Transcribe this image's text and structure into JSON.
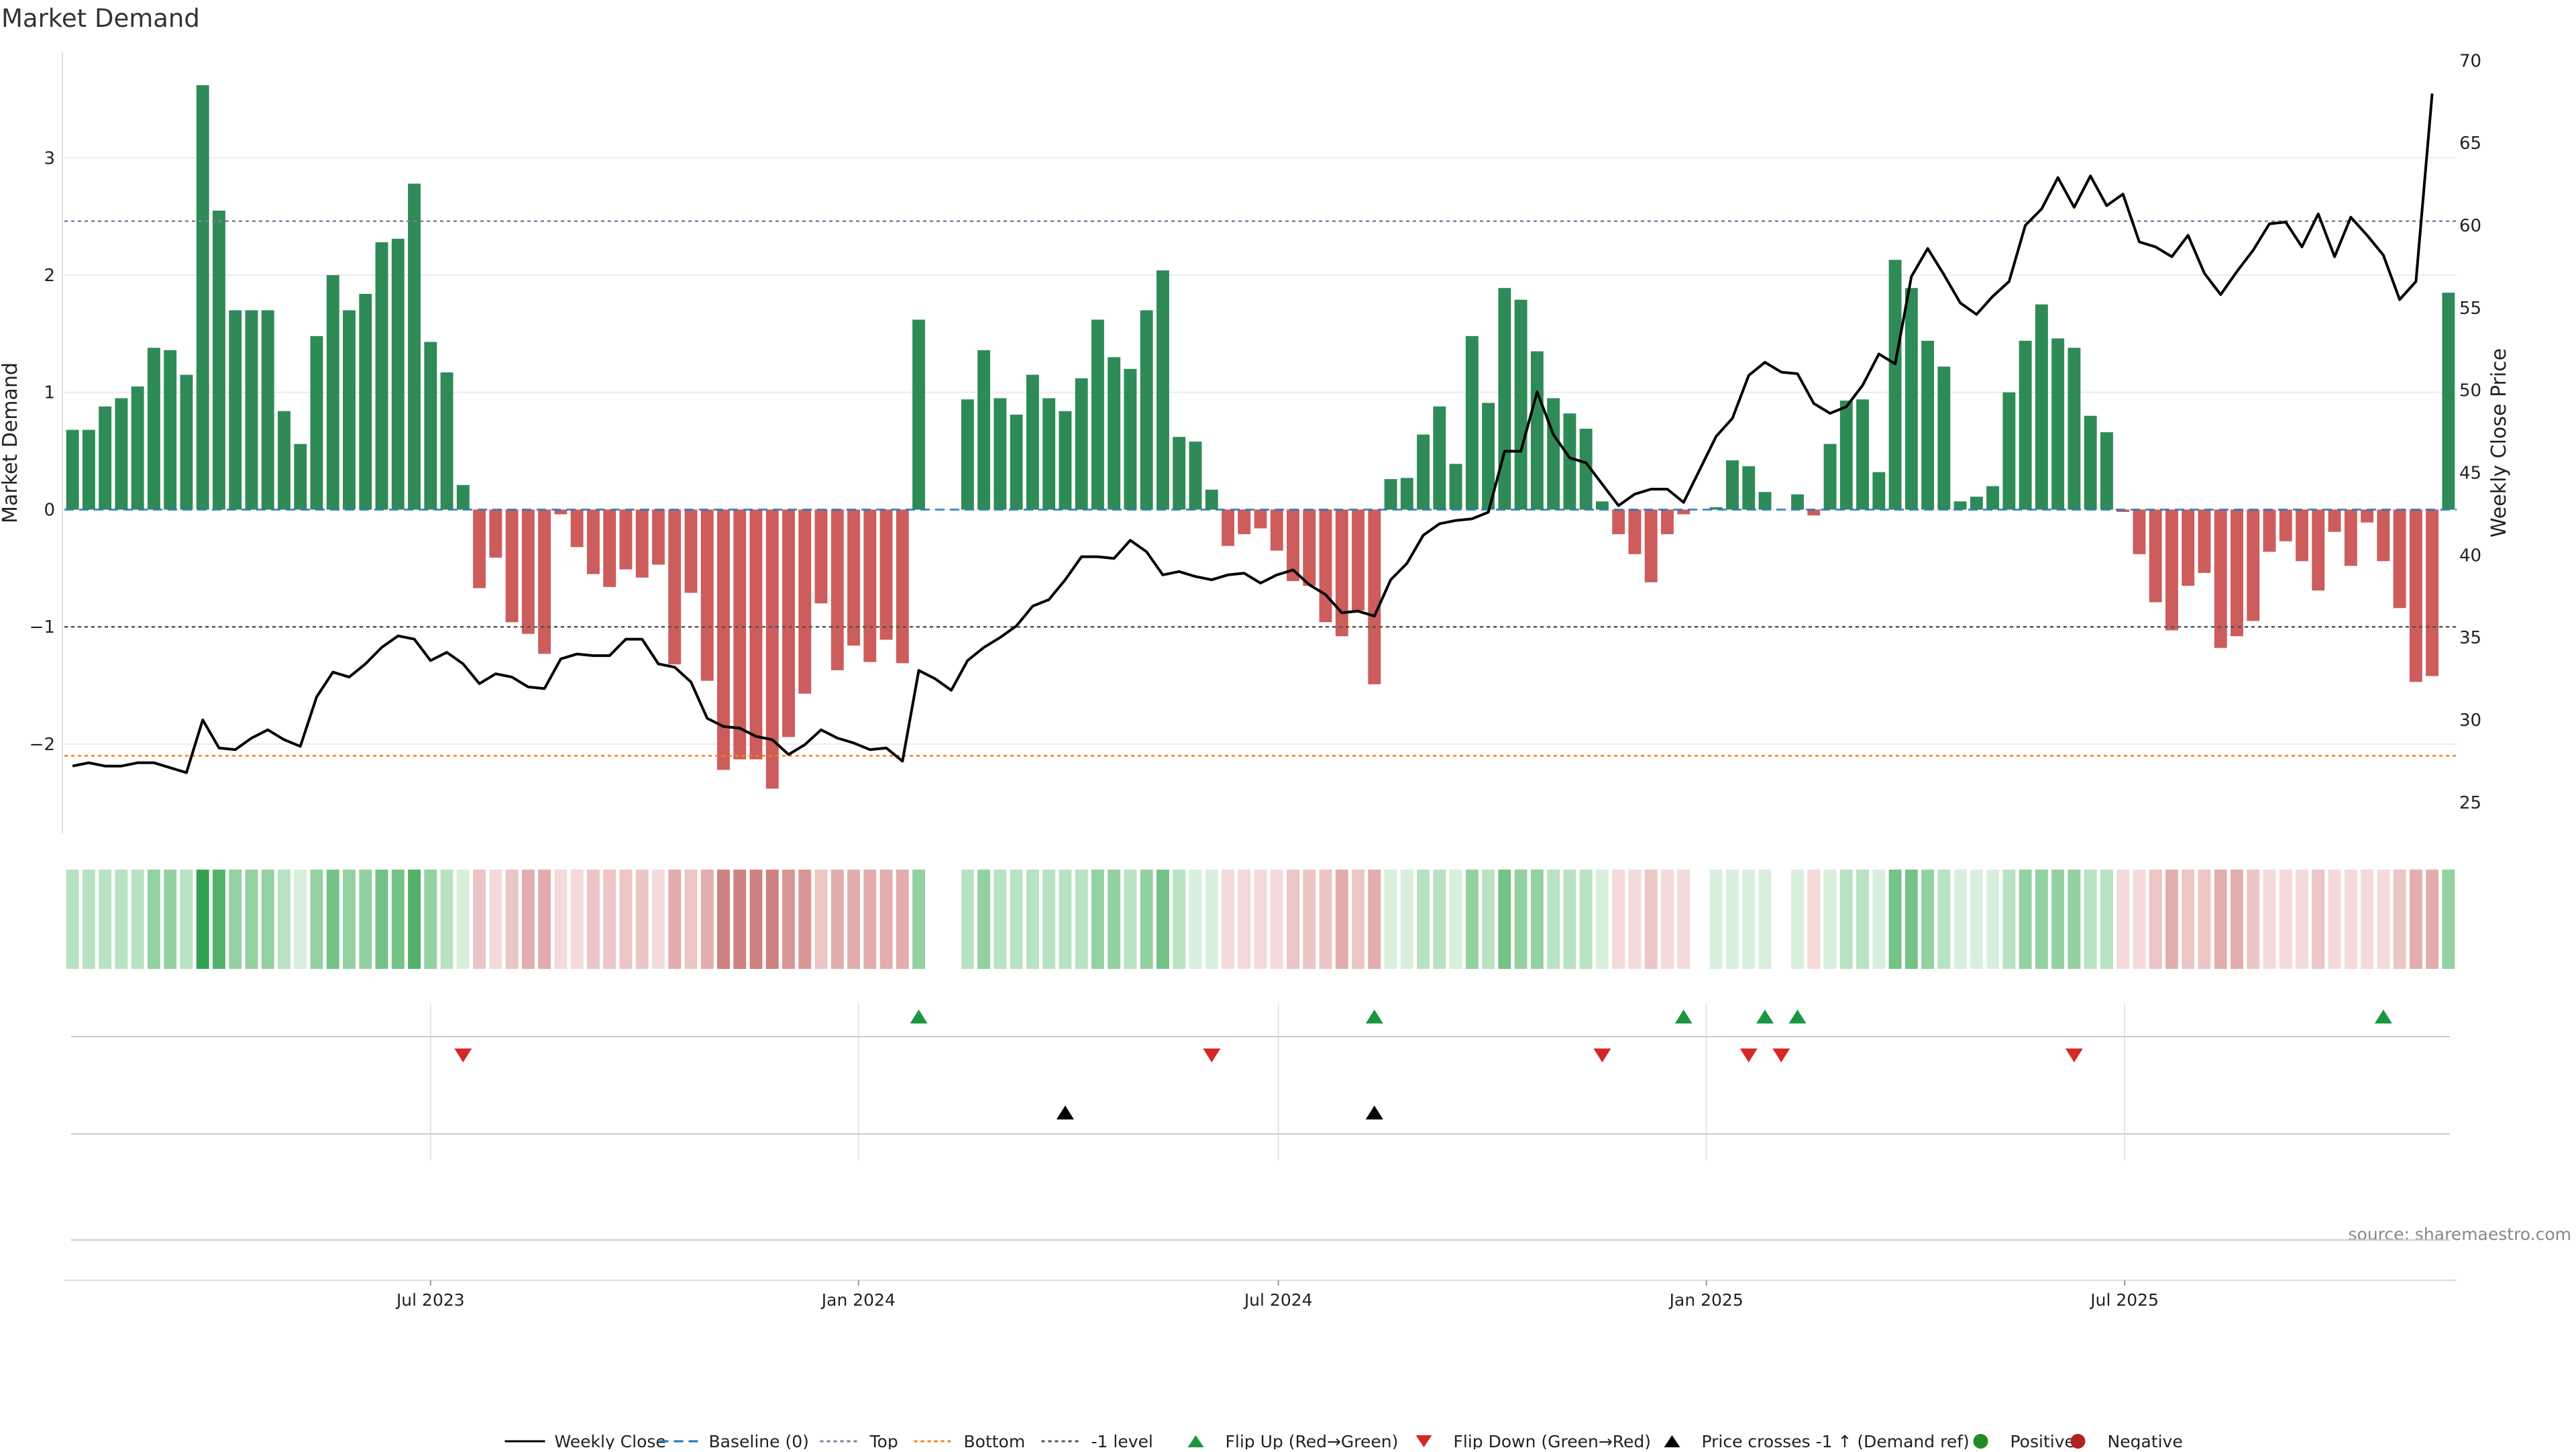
{
  "title": "Market Demand",
  "source": "source: sharemaestro.com",
  "colors": {
    "positive": "#2e8b57",
    "negative": "#cd5c5c",
    "price_line": "#000000",
    "baseline": "#1f77b4",
    "top_line": "#7f7f9f",
    "bottom_line": "#ff7f0e",
    "minus_one_line": "#555555",
    "flip_up": "#1a9641",
    "flip_down": "#d62728",
    "cross_marker": "#000000",
    "positive_dot": "#228b22",
    "negative_dot": "#b22222"
  },
  "chart_data": {
    "type": "bar",
    "title": "Market Demand",
    "ylabel": "Market Demand",
    "y2label": "Weekly Close Price",
    "ylim": [
      -2.75,
      3.9
    ],
    "y2lim": [
      23.2,
      70.5
    ],
    "yticks": [
      "3",
      "2",
      "1",
      "0",
      "−1",
      "−2"
    ],
    "ytick_values": [
      3,
      2,
      1,
      0,
      -1,
      -2
    ],
    "y2ticks": [
      "70",
      "65",
      "60",
      "55",
      "50",
      "45",
      "40",
      "35",
      "30",
      "25"
    ],
    "y2tick_values": [
      70,
      65,
      60,
      55,
      50,
      45,
      40,
      35,
      30,
      25
    ],
    "xticks": [
      "Jul 2023",
      "Jan 2024",
      "Jul 2024",
      "Jan 2025",
      "Jul 2025"
    ],
    "xtick_index": [
      22,
      48.3,
      74.1,
      100.4,
      126.1
    ],
    "reference_lines": {
      "top": 2.46,
      "bottom": -2.1,
      "minus_one": -1.0,
      "baseline": 0
    },
    "demand": [
      0.68,
      0.68,
      0.88,
      0.95,
      1.05,
      1.38,
      1.36,
      1.15,
      3.62,
      2.55,
      1.7,
      1.7,
      1.7,
      0.84,
      0.56,
      1.48,
      2.0,
      1.7,
      1.84,
      2.28,
      2.31,
      2.78,
      1.43,
      1.17,
      0.21,
      -0.67,
      -0.41,
      -0.96,
      -1.06,
      -1.23,
      -0.04,
      -0.32,
      -0.55,
      -0.66,
      -0.51,
      -0.58,
      -0.47,
      -1.32,
      -0.71,
      -1.46,
      -2.22,
      -2.13,
      -2.13,
      -2.38,
      -1.94,
      -1.57,
      -0.8,
      -1.37,
      -1.16,
      -1.3,
      -1.11,
      -1.31,
      1.62,
      0.0,
      0.0,
      0.94,
      1.36,
      0.95,
      0.81,
      1.15,
      0.95,
      0.84,
      1.12,
      1.62,
      1.3,
      1.2,
      1.7,
      2.04,
      0.62,
      0.58,
      0.17,
      -0.31,
      -0.21,
      -0.16,
      -0.35,
      -0.61,
      -0.65,
      -0.96,
      -1.08,
      -0.86,
      -1.49,
      0.26,
      0.27,
      0.64,
      0.88,
      0.39,
      1.48,
      0.91,
      1.89,
      1.79,
      1.35,
      0.95,
      0.82,
      0.69,
      0.07,
      -0.21,
      -0.38,
      -0.62,
      -0.21,
      -0.04,
      0.0,
      0.02,
      0.42,
      0.37,
      0.15,
      0.0,
      0.13,
      -0.05,
      0.56,
      0.93,
      0.94,
      0.32,
      2.13,
      1.89,
      1.44,
      1.22,
      0.07,
      0.11,
      0.2,
      1.0,
      1.44,
      1.75,
      1.46,
      1.38,
      0.8,
      0.66,
      -0.02,
      -0.38,
      -0.79,
      -1.03,
      -0.65,
      -0.54,
      -1.18,
      -1.08,
      -0.95,
      -0.36,
      -0.27,
      -0.44,
      -0.69,
      -0.19,
      -0.48,
      -0.11,
      -0.44,
      -0.84,
      -1.47,
      -1.42,
      1.85
    ],
    "price": [
      27.2,
      27.4,
      27.2,
      27.2,
      27.4,
      27.4,
      27.1,
      26.8,
      30.0,
      28.3,
      28.2,
      28.9,
      29.4,
      28.8,
      28.4,
      31.4,
      32.9,
      32.6,
      33.4,
      34.4,
      35.1,
      34.9,
      33.6,
      34.1,
      33.4,
      32.2,
      32.8,
      32.6,
      32.0,
      31.9,
      33.7,
      34.0,
      33.9,
      33.9,
      34.9,
      34.9,
      33.4,
      33.2,
      32.3,
      30.1,
      29.6,
      29.5,
      29.0,
      28.8,
      27.9,
      28.5,
      29.4,
      28.9,
      28.6,
      28.2,
      28.3,
      27.5,
      33.0,
      32.5,
      31.8,
      33.6,
      34.4,
      35.0,
      35.7,
      36.9,
      37.3,
      38.5,
      39.9,
      39.9,
      39.8,
      40.9,
      40.2,
      38.8,
      39.0,
      38.7,
      38.5,
      38.8,
      38.9,
      38.3,
      38.8,
      39.1,
      38.2,
      37.6,
      36.5,
      36.6,
      36.3,
      38.5,
      39.5,
      41.2,
      41.9,
      42.1,
      42.2,
      42.6,
      46.3,
      46.3,
      49.9,
      47.3,
      45.9,
      45.6,
      44.3,
      43.0,
      43.7,
      44.0,
      44.0,
      43.2,
      45.2,
      47.2,
      48.3,
      50.9,
      51.7,
      51.1,
      51.0,
      49.2,
      48.6,
      49.0,
      50.3,
      52.2,
      51.6,
      56.9,
      58.6,
      57.0,
      55.3,
      54.6,
      55.7,
      56.6,
      60.0,
      61.0,
      62.9,
      61.1,
      63.0,
      61.2,
      61.9,
      59.0,
      58.7,
      58.1,
      59.4,
      57.1,
      55.8,
      57.2,
      58.5,
      60.1,
      60.2,
      58.7,
      60.7,
      58.1,
      60.5,
      59.4,
      58.2,
      55.5,
      56.6,
      68.0
    ],
    "palette_bands": {
      "green": [
        "#d8efdc",
        "#b8e2c1",
        "#94d1a1",
        "#74c286",
        "#52b26a",
        "#33a153"
      ],
      "red": [
        "#f4dada",
        "#ecc5c5",
        "#e3adad",
        "#d99696",
        "#cf8080"
      ]
    },
    "signals": {
      "flip_up_index": [
        52,
        80,
        99,
        104,
        106,
        142
      ],
      "flip_down_index": [
        24,
        70,
        94,
        103,
        105,
        123
      ],
      "price_cross_up_index": [
        61,
        80
      ]
    }
  },
  "legend": [
    {
      "key": "weekly_close",
      "label": "Weekly Close",
      "symbol": "line-solid",
      "color": "#000000"
    },
    {
      "key": "baseline",
      "label": "Baseline (0)",
      "symbol": "line-dash",
      "color": "#1f77b4"
    },
    {
      "key": "top",
      "label": "Top",
      "symbol": "line-dot",
      "color": "#7f7f9f"
    },
    {
      "key": "bottom",
      "label": "Bottom",
      "symbol": "line-dot",
      "color": "#ff7f0e"
    },
    {
      "key": "minus_one",
      "label": "-1 level",
      "symbol": "line-dot",
      "color": "#555555"
    },
    {
      "key": "flip_up",
      "label": "Flip Up (Red→Green)",
      "symbol": "triangle-up",
      "color": "#1a9641"
    },
    {
      "key": "flip_down",
      "label": "Flip Down (Green→Red)",
      "symbol": "triangle-down",
      "color": "#d62728"
    },
    {
      "key": "price_cross",
      "label": "Price crosses -1 ↑ (Demand ref)",
      "symbol": "triangle-up",
      "color": "#000000"
    },
    {
      "key": "positive",
      "label": "Positive",
      "symbol": "dot",
      "color": "#228b22"
    },
    {
      "key": "negative",
      "label": "Negative",
      "symbol": "dot",
      "color": "#b22222"
    }
  ]
}
